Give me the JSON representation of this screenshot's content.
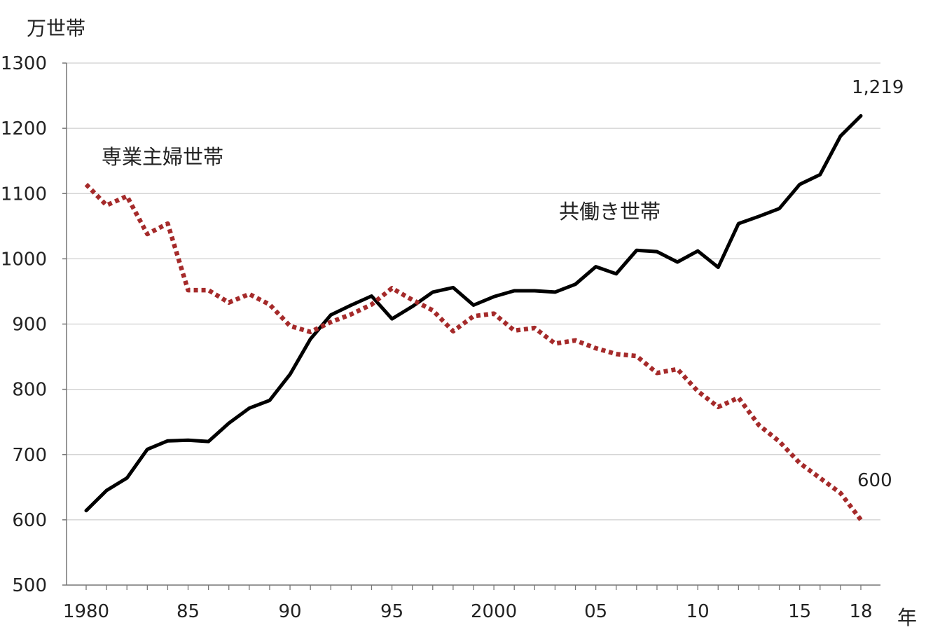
{
  "chart_data": {
    "type": "line",
    "ylabel": "万世帯",
    "xlabel": "年",
    "ylim": [
      500,
      1300
    ],
    "yticks": [
      "500",
      "600",
      "700",
      "800",
      "900",
      "1000",
      "1100",
      "1200",
      "1300"
    ],
    "xlim": [
      1980,
      2018
    ],
    "xticks": [
      {
        "year": 1980,
        "label": "1980"
      },
      {
        "year": 1985,
        "label": "85"
      },
      {
        "year": 1990,
        "label": "90"
      },
      {
        "year": 1995,
        "label": "95"
      },
      {
        "year": 2000,
        "label": "2000"
      },
      {
        "year": 2005,
        "label": "05"
      },
      {
        "year": 2010,
        "label": "10"
      },
      {
        "year": 2015,
        "label": "15"
      },
      {
        "year": 2018,
        "label": "18"
      }
    ],
    "grid": "horizontal",
    "x": [
      1980,
      1981,
      1982,
      1983,
      1984,
      1985,
      1986,
      1987,
      1988,
      1989,
      1990,
      1991,
      1992,
      1993,
      1994,
      1995,
      1996,
      1997,
      1998,
      1999,
      2000,
      2001,
      2002,
      2003,
      2004,
      2005,
      2006,
      2007,
      2008,
      2009,
      2010,
      2011,
      2012,
      2013,
      2014,
      2015,
      2016,
      2017,
      2018
    ],
    "series": [
      {
        "name": "共働き世帯",
        "color": "#000000",
        "style": "solid",
        "values": [
          614,
          645,
          664,
          708,
          721,
          722,
          720,
          748,
          771,
          783,
          823,
          877,
          914,
          929,
          943,
          908,
          927,
          949,
          956,
          929,
          942,
          951,
          951,
          949,
          961,
          988,
          977,
          1013,
          1011,
          995,
          1012,
          987,
          1054,
          1065,
          1077,
          1114,
          1129,
          1188,
          1219
        ],
        "end_label": "1,219"
      },
      {
        "name": "専業主婦世帯",
        "color": "#a52a2a",
        "style": "dotted",
        "values": [
          1114,
          1082,
          1096,
          1038,
          1054,
          952,
          952,
          933,
          946,
          930,
          897,
          888,
          903,
          915,
          930,
          955,
          937,
          921,
          889,
          912,
          916,
          890,
          894,
          870,
          875,
          863,
          854,
          851,
          825,
          831,
          797,
          773,
          787,
          745,
          720,
          687,
          664,
          641,
          600
        ],
        "end_label": "600"
      }
    ]
  }
}
